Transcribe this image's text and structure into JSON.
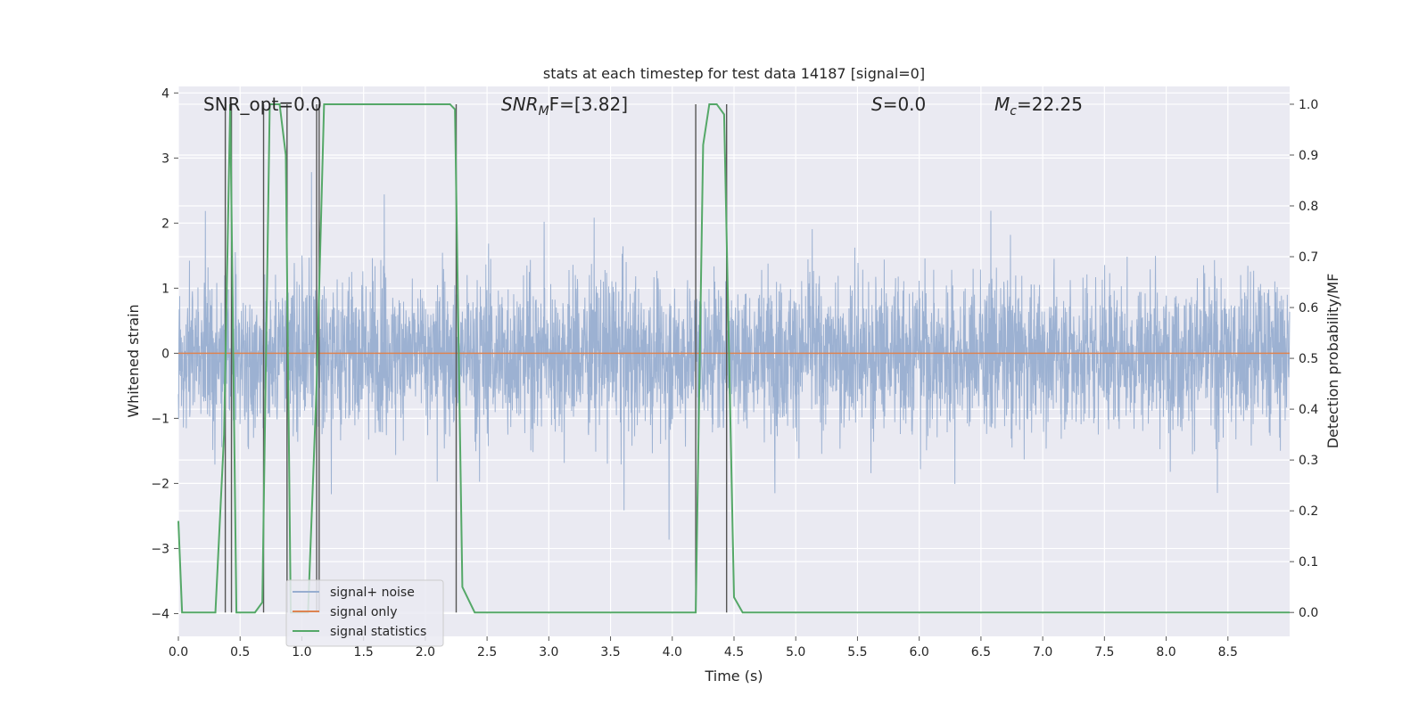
{
  "chart_data": {
    "type": "line",
    "title": "stats at each timestep for test data 14187 [signal=0]",
    "xlabel": "Time (s)",
    "ylabel": "Whitened strain",
    "y2label": "Detection probability/MF",
    "xlim": [
      0.0,
      9.0
    ],
    "ylim": [
      -4.35,
      4.1
    ],
    "y2lim": [
      -0.047,
      1.035
    ],
    "xticks": [
      "0.0",
      "0.5",
      "1.0",
      "1.5",
      "2.0",
      "2.5",
      "3.0",
      "3.5",
      "4.0",
      "4.5",
      "5.0",
      "5.5",
      "6.0",
      "6.5",
      "7.0",
      "7.5",
      "8.0",
      "8.5"
    ],
    "yticks": [
      "4",
      "3",
      "2",
      "1",
      "0",
      "−1",
      "−2",
      "−3",
      "−4"
    ],
    "y2ticks": [
      "1.0",
      "0.9",
      "0.8",
      "0.7",
      "0.6",
      "0.5",
      "0.4",
      "0.3",
      "0.2",
      "0.1",
      "0.0"
    ],
    "grid": true,
    "legend_position": "lower-left",
    "annotations": {
      "snr_opt": "SNR_opt=0.0",
      "snr_mf_base": "SNR",
      "snr_mf_sub": "M",
      "snr_mf_rest": "F=[3.82]",
      "s_label": "S",
      "s_value": "=0.0",
      "mc_base": "M",
      "mc_sub": "c",
      "mc_value": "=22.25"
    },
    "colors": {
      "background": "#eaeaf2",
      "grid": "#ffffff",
      "noise": "#98aed0",
      "signal_only": "#dd8452",
      "statistics": "#55a868",
      "event_lines": "#555555"
    },
    "series": [
      {
        "name": "signal+ noise",
        "axis": "left",
        "description_values": {
          "duration_s": 9.0,
          "band": [
            -1.7,
            1.7
          ],
          "peak_max": 3.7,
          "peak_min": -4.0
        }
      },
      {
        "name": "signal only",
        "axis": "left",
        "x": [
          0.0,
          9.0
        ],
        "y": [
          0.0,
          0.0
        ]
      },
      {
        "name": "signal statistics",
        "axis": "right",
        "x": [
          0.0,
          0.03,
          0.1,
          0.3,
          0.37,
          0.42,
          0.44,
          0.47,
          0.55,
          0.62,
          0.68,
          0.7,
          0.74,
          0.77,
          0.82,
          0.87,
          0.91,
          0.95,
          1.0,
          1.05,
          1.12,
          1.18,
          1.3,
          2.0,
          2.2,
          2.24,
          2.3,
          2.4,
          2.5,
          3.5,
          4.15,
          4.19,
          4.25,
          4.3,
          4.36,
          4.42,
          4.5,
          4.57,
          4.7,
          9.0
        ],
        "y": [
          0.18,
          0.0,
          0.0,
          0.0,
          0.35,
          1.0,
          0.6,
          0.0,
          0.0,
          0.0,
          0.02,
          0.35,
          1.0,
          1.0,
          1.0,
          0.9,
          0.0,
          0.0,
          0.0,
          0.0,
          0.45,
          1.0,
          1.0,
          1.0,
          1.0,
          0.99,
          0.05,
          0.0,
          0.0,
          0.0,
          0.0,
          0.0,
          0.92,
          1.0,
          1.0,
          0.98,
          0.03,
          0.0,
          0.0,
          0.0
        ]
      }
    ],
    "event_markers_x": [
      0.38,
      0.43,
      0.69,
      0.88,
      1.12,
      1.14,
      2.25,
      4.19,
      4.44
    ]
  }
}
